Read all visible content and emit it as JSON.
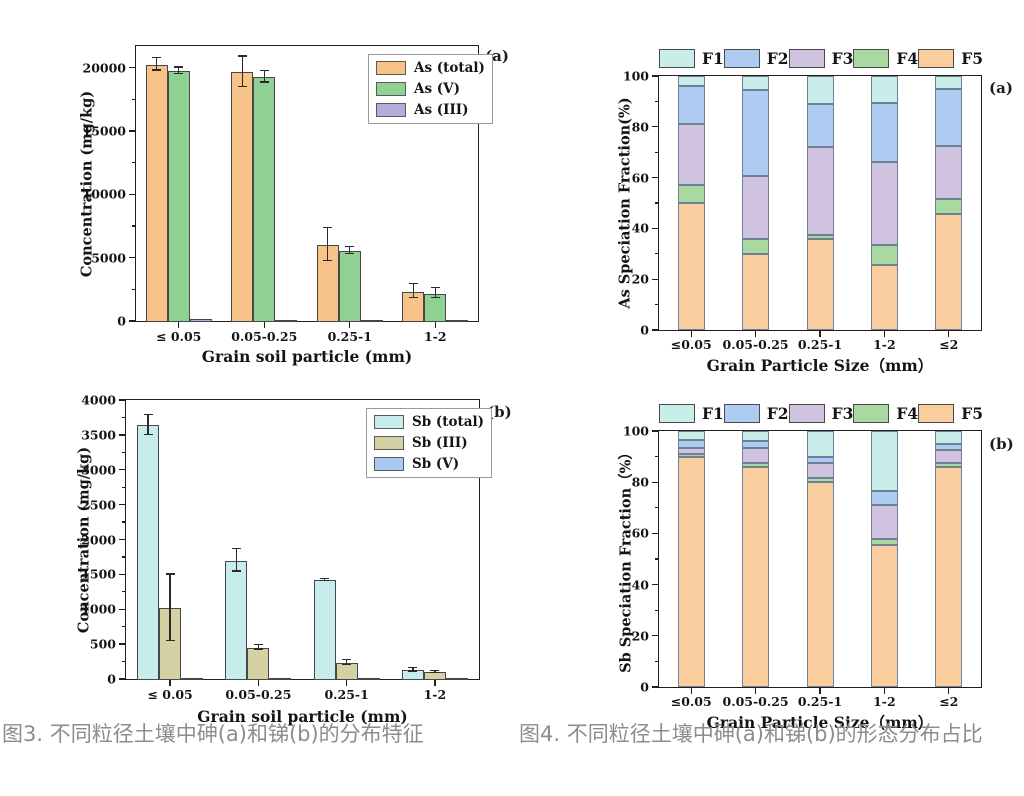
{
  "captions": {
    "fig3": "图3. 不同粒径土壤中砷(a)和锑(b)的分布特征",
    "fig4": "图4. 不同粒径土壤中砷(a)和锑(b)的形态分布占比"
  },
  "chart_data": [
    {
      "id": "as-concentration",
      "type": "bar",
      "panel_label": "(a)",
      "xlabel": "Grain soil particle (mm)",
      "ylabel": "Concentration (mg/kg)",
      "ylim": [
        0,
        21700
      ],
      "yticks": [
        0,
        5000,
        10000,
        15000,
        20000
      ],
      "yminor_step": 2500,
      "grid": false,
      "legend_position": "inside-top-right",
      "categories": [
        "≤ 0.05",
        "0.05-0.25",
        "0.25-1",
        "1-2"
      ],
      "series": [
        {
          "name": "As (total)",
          "color": "#F7C388",
          "values": [
            20300,
            19700,
            6100,
            2400
          ],
          "errors": [
            500,
            1200,
            1300,
            550
          ]
        },
        {
          "name": "As (V)",
          "color": "#90D092",
          "values": [
            19800,
            19300,
            5600,
            2250
          ],
          "errors": [
            250,
            450,
            300,
            400
          ]
        },
        {
          "name": "As (III)",
          "color": "#B4ABDB",
          "values": [
            200,
            100,
            50,
            30
          ],
          "errors": [
            0,
            0,
            0,
            0
          ]
        }
      ]
    },
    {
      "id": "sb-concentration",
      "type": "bar",
      "panel_label": "(b)",
      "xlabel": "Grain soil particle (mm)",
      "ylabel": "Concentration (mg/kg)",
      "ylim": [
        0,
        4000
      ],
      "yticks": [
        0,
        500,
        1000,
        1500,
        2000,
        2500,
        3000,
        3500,
        4000
      ],
      "yminor_step": 250,
      "grid": false,
      "legend_position": "inside-top-right",
      "categories": [
        "≤ 0.05",
        "0.05-0.25",
        "0.25-1",
        "1-2"
      ],
      "series": [
        {
          "name": "Sb (total)",
          "color": "#C6ECEB",
          "values": [
            3650,
            1710,
            1430,
            140
          ],
          "errors": [
            140,
            160,
            15,
            25
          ]
        },
        {
          "name": "Sb (III)",
          "color": "#D4D2A5",
          "values": [
            1030,
            460,
            240,
            110
          ],
          "errors": [
            475,
            30,
            35,
            15
          ]
        },
        {
          "name": "Sb (V)",
          "color": "#AAC7F0",
          "values": [
            20,
            10,
            5,
            5
          ],
          "errors": [
            0,
            0,
            0,
            0
          ]
        }
      ]
    },
    {
      "id": "as-speciation",
      "type": "stacked-bar",
      "panel_label": "(a)",
      "xlabel": "Grain Particle Size（mm）",
      "ylabel": "As Speciation Fraction(%)",
      "ylim": [
        0,
        100
      ],
      "yticks": [
        0,
        20,
        40,
        60,
        80,
        100
      ],
      "yminor_step": 10,
      "grid": false,
      "legend_position": "above-plot",
      "stack_bottom_to_top": [
        "F5",
        "F4",
        "F3",
        "F2",
        "F1"
      ],
      "categories": [
        "≤0.05",
        "0.05-0.25",
        "0.25-1",
        "1-2",
        "≤2"
      ],
      "series": [
        {
          "name": "F1",
          "color": "#C9EDE9",
          "values": [
            4,
            5.5,
            11,
            10.5,
            5
          ]
        },
        {
          "name": "F2",
          "color": "#AECBF1",
          "values": [
            15,
            34,
            17,
            23.5,
            22.5
          ]
        },
        {
          "name": "F3",
          "color": "#CFC3E0",
          "values": [
            24,
            24.5,
            34.5,
            32.5,
            21
          ]
        },
        {
          "name": "F4",
          "color": "#A9D8A1",
          "values": [
            7,
            6,
            1.5,
            8,
            6
          ]
        },
        {
          "name": "F5",
          "color": "#F9CD9D",
          "values": [
            50,
            30,
            36,
            25.5,
            45.5
          ]
        }
      ]
    },
    {
      "id": "sb-speciation",
      "type": "stacked-bar",
      "panel_label": "(b)",
      "xlabel": "Grain Particle Size（mm）",
      "ylabel": "Sb Speciation Fraction（%）",
      "ylim": [
        0,
        100
      ],
      "yticks": [
        0,
        20,
        40,
        60,
        80,
        100
      ],
      "yminor_step": 10,
      "grid": false,
      "legend_position": "above-plot",
      "stack_bottom_to_top": [
        "F5",
        "F4",
        "F3",
        "F2",
        "F1"
      ],
      "categories": [
        "≤0.05",
        "0.05-0.25",
        "0.25-1",
        "1-2",
        "≤2"
      ],
      "series": [
        {
          "name": "F1",
          "color": "#C9EDE9",
          "values": [
            3.5,
            4,
            10,
            23.5,
            5
          ]
        },
        {
          "name": "F2",
          "color": "#AECBF1",
          "values": [
            3,
            2.5,
            2.5,
            5.5,
            2.5
          ]
        },
        {
          "name": "F3",
          "color": "#CFC3E0",
          "values": [
            2.5,
            6,
            6,
            13,
            5
          ]
        },
        {
          "name": "F4",
          "color": "#A9D8A1",
          "values": [
            1,
            1.5,
            1.5,
            2.5,
            1.5
          ]
        },
        {
          "name": "F5",
          "color": "#F9CD9D",
          "values": [
            90,
            86,
            80,
            55.5,
            86
          ]
        }
      ]
    }
  ]
}
